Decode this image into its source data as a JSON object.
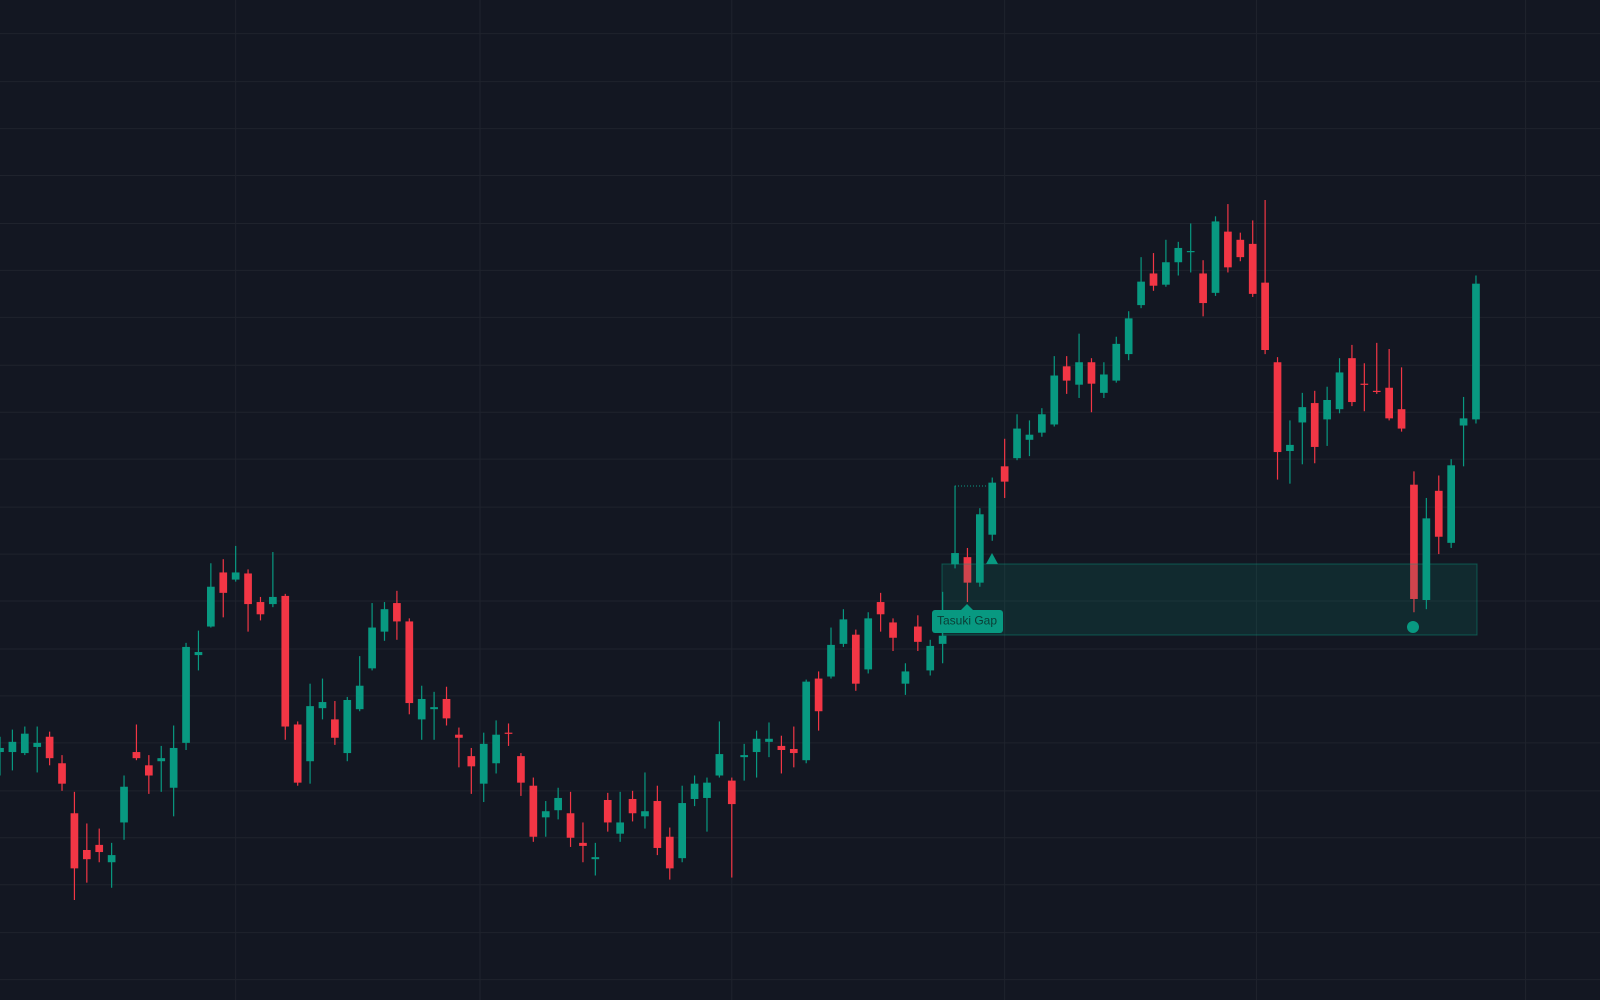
{
  "chart_data": {
    "type": "candlestick",
    "annotations": [
      {
        "label": "Tasuki Gap"
      }
    ],
    "up_color": "#089981",
    "down_color": "#f23645",
    "grid": true,
    "xlim": [
      0,
      129
    ],
    "xticks": [
      19,
      38.7,
      59,
      81,
      101.3,
      123
    ],
    "ylim": [
      0,
      980
    ],
    "yticks": [
      20,
      66,
      113,
      159,
      205,
      252,
      298,
      344,
      391,
      437,
      483,
      530,
      576,
      622,
      669,
      715,
      761,
      808,
      854,
      900,
      947
    ],
    "open": [
      243,
      243,
      242,
      248,
      258,
      232,
      183,
      147,
      152,
      135,
      174,
      243,
      230,
      234,
      208,
      252,
      338,
      366,
      419,
      412,
      418,
      390,
      388,
      396,
      270,
      234,
      286,
      275,
      242,
      285,
      325,
      361,
      389,
      371,
      275,
      285,
      295,
      260,
      239,
      212,
      232,
      262,
      239,
      210,
      179,
      186,
      183,
      154,
      138,
      196,
      163,
      197,
      180,
      195,
      160,
      139,
      197,
      198,
      220,
      215,
      238,
      243,
      253,
      249,
      246,
      235,
      315,
      317,
      349,
      358,
      324,
      390,
      370,
      310,
      366,
      323,
      349,
      427,
      434,
      409,
      456,
      523,
      531,
      549,
      556,
      564,
      621,
      603,
      625,
      595,
      607,
      633,
      681,
      712,
      701,
      723,
      733,
      712,
      693,
      753,
      745,
      741,
      703,
      625,
      538,
      566,
      585,
      569,
      579,
      629,
      604,
      597,
      600,
      579,
      505,
      392,
      499,
      448,
      563,
      569
    ],
    "high": [
      258,
      265,
      268,
      268,
      263,
      240,
      204,
      173,
      168,
      154,
      220,
      270,
      240,
      249,
      269,
      350,
      362,
      428,
      432,
      445,
      422,
      395,
      439,
      398,
      273,
      310,
      315,
      293,
      297,
      337,
      389,
      390,
      401,
      374,
      308,
      302,
      307,
      267,
      247,
      262,
      274,
      271,
      242,
      218,
      195,
      208,
      204,
      174,
      154,
      203,
      204,
      205,
      223,
      210,
      169,
      210,
      220,
      218,
      273,
      218,
      251,
      264,
      272,
      259,
      268,
      314,
      322,
      365,
      383,
      363,
      380,
      399,
      374,
      330,
      377,
      353,
      400,
      504,
      443,
      482,
      512,
      550,
      574,
      568,
      580,
      631,
      631,
      653,
      629,
      625,
      650,
      675,
      728,
      732,
      745,
      743,
      761,
      725,
      768,
      780,
      752,
      764,
      784,
      630,
      568,
      595,
      597,
      601,
      629,
      642,
      624,
      644,
      638,
      620,
      518,
      492,
      514,
      530,
      591,
      710
    ],
    "low": [
      220,
      225,
      240,
      223,
      230,
      205,
      98,
      115,
      135,
      110,
      157,
      235,
      202,
      204,
      180,
      245,
      323,
      365,
      375,
      410,
      361,
      372,
      385,
      255,
      210,
      212,
      275,
      250,
      234,
      283,
      323,
      352,
      353,
      280,
      255,
      255,
      269,
      228,
      202,
      194,
      222,
      249,
      200,
      155,
      160,
      177,
      150,
      135,
      122,
      165,
      155,
      175,
      168,
      142,
      118,
      135,
      190,
      165,
      218,
      120,
      215,
      218,
      238,
      222,
      228,
      232,
      264,
      315,
      346,
      303,
      320,
      361,
      342,
      299,
      342,
      318,
      330,
      423,
      390,
      405,
      450,
      492,
      529,
      533,
      552,
      562,
      594,
      590,
      576,
      590,
      605,
      627,
      678,
      695,
      699,
      710,
      713,
      670,
      690,
      713,
      724,
      689,
      633,
      510,
      506,
      525,
      526,
      543,
      575,
      582,
      577,
      594,
      568,
      557,
      380,
      383,
      437,
      443,
      523,
      565
    ],
    "close": [
      247,
      253,
      261,
      252,
      237,
      212,
      129,
      138,
      145,
      142,
      209,
      237,
      220,
      237,
      247,
      346,
      341,
      405,
      399,
      419,
      388,
      378,
      395,
      268,
      213,
      288,
      292,
      257,
      294,
      308,
      365,
      383,
      371,
      291,
      295,
      287,
      276,
      257,
      229,
      251,
      260,
      261,
      213,
      160,
      185,
      198,
      159,
      151,
      140,
      174,
      174,
      183,
      185,
      149,
      129,
      193,
      212,
      213,
      241,
      192,
      240,
      256,
      256,
      245,
      242,
      312,
      283,
      348,
      373,
      310,
      374,
      378,
      355,
      322,
      351,
      347,
      357,
      438,
      409,
      476,
      507,
      508,
      560,
      554,
      574,
      612,
      607,
      625,
      604,
      613,
      643,
      668,
      704,
      700,
      723,
      737,
      734,
      683,
      763,
      718,
      728,
      692,
      637,
      537,
      544,
      581,
      542,
      588,
      615,
      586,
      603,
      596,
      570,
      560,
      393,
      472,
      454,
      524,
      570,
      702
    ]
  }
}
